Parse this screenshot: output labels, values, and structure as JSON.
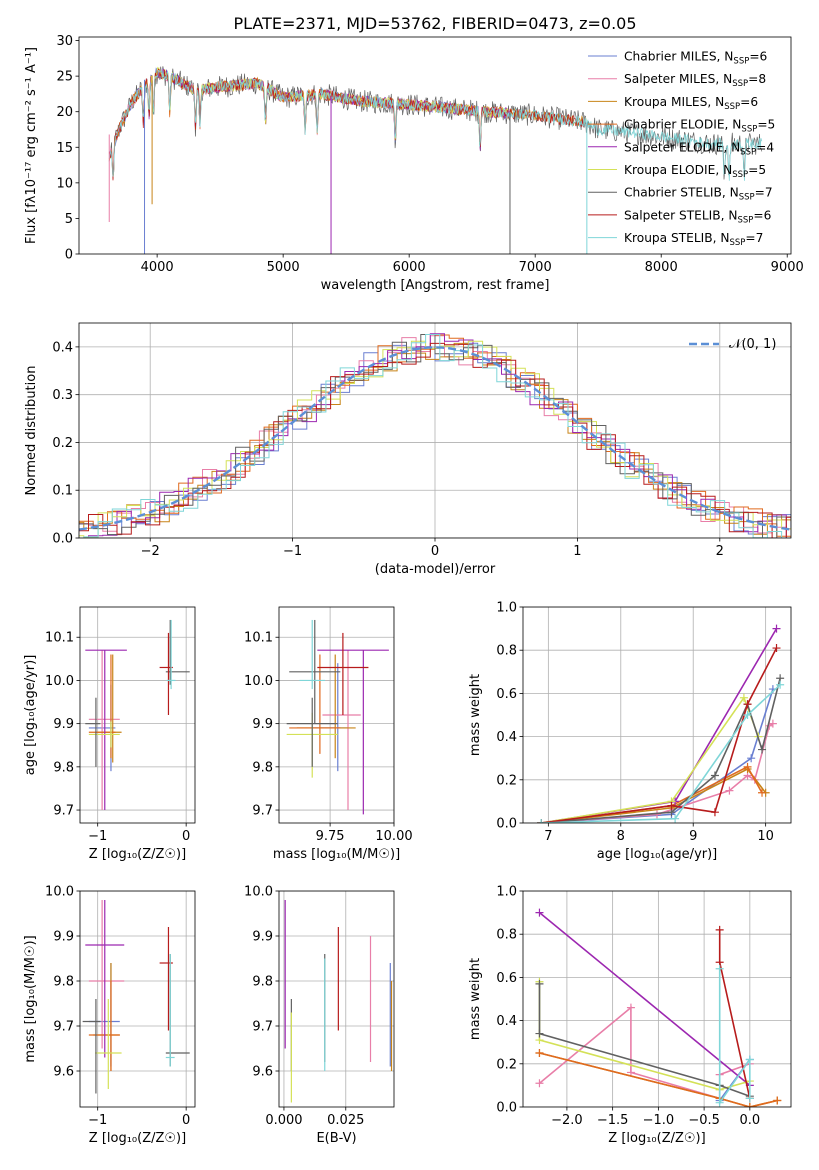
{
  "figure_title": "PLATE=2371, MJD=53762, FIBERID=0473, z=0.05",
  "colors": {
    "Chabrier MILES": "#6a7fd1",
    "Salpeter MILES": "#e87ea8",
    "Kroupa MILES": "#c88418",
    "Chabrier ELODIE": "#e06a1f",
    "Salpeter ELODIE": "#9c27b0",
    "Kroupa ELODIE": "#d4e157",
    "Chabrier STELIB": "#616161",
    "Salpeter STELIB": "#b71c1c",
    "Kroupa STELIB": "#7fd6d8",
    "normal_curve": "#5b8fd6"
  },
  "chart_data": [
    {
      "id": "spectrum",
      "type": "line",
      "title": "PLATE=2371, MJD=53762, FIBERID=0473, z=0.05",
      "xlabel": "wavelength [Angstrom, rest frame]",
      "ylabel": "Flux [fλ10⁻¹⁷ erg cm⁻² s⁻¹ A⁻¹]",
      "xlim": [
        3380,
        9030
      ],
      "ylim": [
        0,
        30.5
      ],
      "xticks": [
        4000,
        5000,
        6000,
        7000,
        8000,
        9000
      ],
      "yticks": [
        0,
        5,
        10,
        15,
        20,
        25,
        30
      ],
      "legend_position": "top-right",
      "legend": [
        {
          "model": "Chabrier MILES",
          "nssp": "6"
        },
        {
          "model": "Salpeter MILES",
          "nssp": "8"
        },
        {
          "model": "Kroupa MILES",
          "nssp": "6"
        },
        {
          "model": "Chabrier ELODIE",
          "nssp": "5"
        },
        {
          "model": "Salpeter ELODIE",
          "nssp": "4"
        },
        {
          "model": "Kroupa ELODIE",
          "nssp": "5"
        },
        {
          "model": "Chabrier STELIB",
          "nssp": "7"
        },
        {
          "model": "Salpeter STELIB",
          "nssp": "6"
        },
        {
          "model": "Kroupa STELIB",
          "nssp": "7"
        }
      ],
      "continuum": {
        "x": [
          3600,
          3700,
          3800,
          3900,
          4000,
          4100,
          4300,
          4500,
          4800,
          5000,
          5300,
          5600,
          6000,
          6300,
          6600,
          7000,
          7400,
          7500,
          7800,
          8000,
          8400,
          8800
        ],
        "y": [
          16,
          20,
          23,
          24.5,
          25.5,
          25,
          23,
          23.5,
          24,
          22,
          22.5,
          21.5,
          21,
          20.5,
          20,
          19.5,
          18.5,
          17.5,
          17,
          16.5,
          15.5,
          15.5
        ]
      },
      "absorption_lines": [
        3650,
        3890,
        3935,
        3970,
        4100,
        4305,
        4340,
        4860,
        5175,
        5270,
        5890,
        6563,
        8500,
        8540,
        8660
      ],
      "model_x_ranges": [
        [
          3620,
          6800
        ],
        [
          3620,
          6800
        ],
        [
          3620,
          7410
        ],
        [
          3620,
          6800
        ],
        [
          3900,
          6800
        ],
        [
          3900,
          6800
        ],
        [
          3620,
          8800
        ],
        [
          3620,
          7400
        ],
        [
          3620,
          8800
        ]
      ]
    },
    {
      "id": "residuals",
      "type": "bar",
      "xlabel": "(data-model)/error",
      "ylabel": "Normed distribution",
      "xlim": [
        -2.5,
        2.5
      ],
      "ylim": [
        0,
        0.45
      ],
      "xticks": [
        -2,
        -1,
        0,
        1,
        2
      ],
      "yticks": [
        0.0,
        0.1,
        0.2,
        0.3,
        0.4
      ],
      "legend_position": "top-right",
      "normal_label": "𝒩(0, 1)"
    },
    {
      "id": "age-vs-Z",
      "type": "scatter",
      "xlabel": "Z [log₁₀(Z/Z☉)]",
      "ylabel": "age  [log₁₀(age/yr)]",
      "xlim": [
        -1.2,
        0.1
      ],
      "ylim": [
        9.67,
        10.17
      ],
      "xticks": [
        -1,
        0
      ],
      "yticks": [
        9.7,
        9.8,
        9.9,
        10.0,
        10.1
      ],
      "points": [
        {
          "model": "Chabrier MILES",
          "x": -0.85,
          "y": 9.89,
          "xerr": [
            0.25,
            0.05
          ],
          "yerr": [
            0.1,
            0.1
          ]
        },
        {
          "model": "Salpeter MILES",
          "x": -0.95,
          "y": 9.91,
          "xerr": [
            0.15,
            0.2
          ],
          "yerr": [
            0.21,
            0.16
          ]
        },
        {
          "model": "Kroupa MILES",
          "x": -0.83,
          "y": 9.88,
          "xerr": [
            0.2,
            0.1
          ],
          "yerr": [
            0.07,
            0.18
          ]
        },
        {
          "model": "Chabrier ELODIE",
          "x": -0.85,
          "y": 9.88,
          "xerr": [
            0.25,
            0.05
          ],
          "yerr": [
            0.06,
            0.18
          ]
        },
        {
          "model": "Salpeter ELODIE",
          "x": -0.92,
          "y": 10.07,
          "xerr": [
            0.22,
            0.25
          ],
          "yerr": [
            0.37,
            0
          ]
        },
        {
          "model": "Kroupa ELODIE",
          "x": -0.85,
          "y": 9.875,
          "xerr": [
            0.25,
            0.1
          ],
          "yerr": [
            0.03,
            0.03
          ]
        },
        {
          "model": "Chabrier STELIB",
          "x": -0.18,
          "y": 10.02,
          "xerr": [
            0.05,
            0.22
          ],
          "yerr": [
            0.03,
            0.12
          ]
        },
        {
          "model": "Salpeter STELIB",
          "x": -0.2,
          "y": 10.03,
          "xerr": [
            0.1,
            0.05
          ],
          "yerr": [
            0.11,
            0.08
          ]
        },
        {
          "model": "Kroupa STELIB",
          "x": -0.17,
          "y": 10.0,
          "xerr": [
            0.05,
            0.05
          ],
          "yerr": [
            0.02,
            0.14
          ]
        },
        {
          "model": "Chabrier STELIB",
          "x": -1.02,
          "y": 9.9,
          "xerr": [
            0.12,
            0.05
          ],
          "yerr": [
            0.1,
            0.06
          ]
        }
      ]
    },
    {
      "id": "age-vs-mass",
      "type": "scatter",
      "xlabel": "mass [log₁₀(M/M☉)]",
      "ylabel": "",
      "xlim": [
        9.55,
        10.0
      ],
      "ylim": [
        9.67,
        10.17
      ],
      "xticks": [
        9.75,
        10.0
      ],
      "xticklabels": [
        "9.75",
        "10.00"
      ],
      "yticks": [
        9.7,
        9.8,
        9.9,
        10.0,
        10.1
      ],
      "points": [
        {
          "model": "Chabrier MILES",
          "x": 9.78,
          "y": 9.89,
          "xerr": [
            0.1,
            0.04
          ],
          "yerr": [
            0.1,
            0.15
          ]
        },
        {
          "model": "Salpeter MILES",
          "x": 9.82,
          "y": 9.92,
          "xerr": [
            0.1,
            0.05
          ],
          "yerr": [
            0.22,
            0.15
          ]
        },
        {
          "model": "Kroupa MILES",
          "x": 9.77,
          "y": 9.89,
          "xerr": [
            0.15,
            0.08
          ],
          "yerr": [
            0.07,
            0.17
          ]
        },
        {
          "model": "Chabrier ELODIE",
          "x": 9.71,
          "y": 9.89,
          "xerr": [
            0.12,
            0.08
          ],
          "yerr": [
            0.06,
            0.17
          ]
        },
        {
          "model": "Salpeter ELODIE",
          "x": 9.88,
          "y": 10.07,
          "xerr": [
            0.18,
            0.1
          ],
          "yerr": [
            0.38,
            0
          ]
        },
        {
          "model": "Kroupa ELODIE",
          "x": 9.68,
          "y": 9.875,
          "xerr": [
            0.1,
            0.1
          ],
          "yerr": [
            0.1,
            0.05
          ]
        },
        {
          "model": "Chabrier STELIB",
          "x": 9.69,
          "y": 10.02,
          "xerr": [
            0.1,
            0.1
          ],
          "yerr": [
            0.12,
            0.12
          ]
        },
        {
          "model": "Salpeter STELIB",
          "x": 9.8,
          "y": 10.03,
          "xerr": [
            0.1,
            0.1
          ],
          "yerr": [
            0.11,
            0.08
          ]
        },
        {
          "model": "Kroupa STELIB",
          "x": 9.68,
          "y": 10.0,
          "xerr": [
            0.05,
            0.05
          ],
          "yerr": [
            0.02,
            0.14
          ]
        },
        {
          "model": "Chabrier STELIB",
          "x": 9.68,
          "y": 9.9,
          "xerr": [
            0.1,
            0.1
          ],
          "yerr": [
            0.1,
            0.06
          ]
        }
      ]
    },
    {
      "id": "mass-weight-vs-age",
      "type": "line",
      "xlabel": "age  [log₁₀(age/yr)]",
      "ylabel": "mass weight",
      "xlim": [
        6.65,
        10.35
      ],
      "ylim": [
        0,
        1.0
      ],
      "xticks": [
        7,
        8,
        9,
        10
      ],
      "yticks": [
        0.0,
        0.2,
        0.4,
        0.6,
        0.8,
        1.0
      ],
      "series": [
        {
          "model": "Chabrier MILES",
          "x": [
            6.9,
            8.7,
            9.8,
            10.1
          ],
          "y": [
            0,
            0.04,
            0.3,
            0.62
          ]
        },
        {
          "model": "Salpeter MILES",
          "x": [
            6.9,
            8.5,
            9.5,
            9.75,
            9.85,
            10.05,
            10.1
          ],
          "y": [
            0,
            0.04,
            0.15,
            0.22,
            0.2,
            0.45,
            0.46
          ]
        },
        {
          "model": "Kroupa MILES",
          "x": [
            6.9,
            8.7,
            9.75,
            10.0
          ],
          "y": [
            0,
            0.07,
            0.25,
            0.14
          ]
        },
        {
          "model": "Chabrier ELODIE",
          "x": [
            6.9,
            8.7,
            9.75,
            9.95
          ],
          "y": [
            0,
            0.08,
            0.26,
            0.14
          ]
        },
        {
          "model": "Salpeter ELODIE",
          "x": [
            6.9,
            8.75,
            10.15
          ],
          "y": [
            0,
            0.1,
            0.9
          ]
        },
        {
          "model": "Kroupa ELODIE",
          "x": [
            6.9,
            8.7,
            9.7,
            9.9
          ],
          "y": [
            0,
            0.1,
            0.58,
            0.4
          ]
        },
        {
          "model": "Chabrier STELIB",
          "x": [
            6.9,
            8.7,
            9.3,
            9.75,
            9.95,
            10.2
          ],
          "y": [
            0,
            0.05,
            0.22,
            0.55,
            0.34,
            0.67
          ]
        },
        {
          "model": "Salpeter STELIB",
          "x": [
            6.9,
            8.7,
            9.3,
            9.75,
            10.15
          ],
          "y": [
            0,
            0.08,
            0.05,
            0.55,
            0.81
          ]
        },
        {
          "model": "Kroupa STELIB",
          "x": [
            6.9,
            8.75,
            9.75,
            10.2
          ],
          "y": [
            0,
            0.02,
            0.5,
            0.64
          ]
        }
      ]
    },
    {
      "id": "mass-vs-Z",
      "type": "scatter",
      "xlabel": "Z [log₁₀(Z/Z☉)]",
      "ylabel": "mass [log₁₀(M/M☉)]",
      "xlim": [
        -1.2,
        0.1
      ],
      "ylim": [
        9.52,
        10.0
      ],
      "xticks": [
        -1,
        0
      ],
      "yticks": [
        9.6,
        9.7,
        9.8,
        9.9,
        10.0
      ],
      "points": [
        {
          "model": "Chabrier MILES",
          "x": -0.85,
          "y": 9.71,
          "xerr": [
            0.25,
            0.1
          ],
          "yerr": [
            0.1,
            0.13
          ]
        },
        {
          "model": "Salpeter MILES",
          "x": -0.95,
          "y": 9.8,
          "xerr": [
            0.15,
            0.25
          ],
          "yerr": [
            0.15,
            0.18
          ]
        },
        {
          "model": "Kroupa MILES",
          "x": -0.85,
          "y": 9.68,
          "xerr": [
            0.2,
            0.1
          ],
          "yerr": [
            0.08,
            0.16
          ]
        },
        {
          "model": "Chabrier ELODIE",
          "x": -0.85,
          "y": 9.68,
          "xerr": [
            0.25,
            0.1
          ],
          "yerr": [
            0.08,
            0.12
          ]
        },
        {
          "model": "Salpeter ELODIE",
          "x": -0.92,
          "y": 9.88,
          "xerr": [
            0.22,
            0.22
          ],
          "yerr": [
            0.25,
            0.1
          ]
        },
        {
          "model": "Kroupa ELODIE",
          "x": -0.88,
          "y": 9.64,
          "xerr": [
            0.15,
            0.15
          ],
          "yerr": [
            0.08,
            0.12
          ]
        },
        {
          "model": "Chabrier STELIB",
          "x": -0.18,
          "y": 9.64,
          "xerr": [
            0.05,
            0.22
          ],
          "yerr": [
            0.03,
            0.22
          ]
        },
        {
          "model": "Salpeter STELIB",
          "x": -0.2,
          "y": 9.84,
          "xerr": [
            0.1,
            0.05
          ],
          "yerr": [
            0.15,
            0.08
          ]
        },
        {
          "model": "Kroupa STELIB",
          "x": -0.18,
          "y": 9.63,
          "xerr": [
            0.05,
            0.05
          ],
          "yerr": [
            0.02,
            0.23
          ]
        },
        {
          "model": "Chabrier STELIB",
          "x": -1.02,
          "y": 9.71,
          "xerr": [
            0.15,
            0.05
          ],
          "yerr": [
            0.16,
            0.05
          ]
        }
      ]
    },
    {
      "id": "mass-vs-ebv",
      "type": "scatter",
      "xlabel": "E(B-V)",
      "ylabel": "",
      "xlim": [
        -0.002,
        0.0445
      ],
      "ylim": [
        9.52,
        10.0
      ],
      "xticks": [
        0.0,
        0.025
      ],
      "xticklabels": [
        "0.000",
        "0.025"
      ],
      "yticks": [
        9.6,
        9.7,
        9.8,
        9.9,
        10.0
      ],
      "points": [
        {
          "model": "Salpeter ELODIE",
          "x": 0.0005,
          "y": 9.8,
          "yerr": [
            0.15,
            0.18
          ]
        },
        {
          "model": "Chabrier STELIB",
          "x": 0.003,
          "y": 9.7,
          "yerr": [
            0.1,
            0.06
          ]
        },
        {
          "model": "Kroupa ELODIE",
          "x": 0.003,
          "y": 9.64,
          "yerr": [
            0.11,
            0.09
          ]
        },
        {
          "model": "Chabrier STELIB",
          "x": 0.0165,
          "y": 9.8,
          "yerr": [
            0.18,
            0.06
          ]
        },
        {
          "model": "Kroupa STELIB",
          "x": 0.0165,
          "y": 9.72,
          "yerr": [
            0.12,
            0.13
          ]
        },
        {
          "model": "Salpeter STELIB",
          "x": 0.022,
          "y": 9.84,
          "yerr": [
            0.15,
            0.08
          ]
        },
        {
          "model": "Salpeter MILES",
          "x": 0.035,
          "y": 9.76,
          "yerr": [
            0.14,
            0.14
          ]
        },
        {
          "model": "Chabrier MILES",
          "x": 0.043,
          "y": 9.71,
          "yerr": [
            0.1,
            0.13
          ]
        },
        {
          "model": "Kroupa MILES",
          "x": 0.0435,
          "y": 9.7,
          "yerr": [
            0.1,
            0.1
          ]
        }
      ]
    },
    {
      "id": "mass-weight-vs-Z",
      "type": "line",
      "xlabel": "Z [log₁₀(Z/Z☉)]",
      "ylabel": "mass weight",
      "xlim": [
        -2.48,
        0.45
      ],
      "ylim": [
        0,
        1.0
      ],
      "xticks": [
        -2.0,
        -1.5,
        -1.0,
        -0.5,
        0.0
      ],
      "xticklabels": [
        "−2.0",
        "−1.5",
        "−1.0",
        "−0.5",
        "0.0"
      ],
      "yticks": [
        0.0,
        0.2,
        0.4,
        0.6,
        0.8,
        1.0
      ],
      "series": [
        {
          "model": "Chabrier MILES",
          "x": [
            -0.33,
            0.0
          ],
          "y": [
            0.03,
            0.22
          ]
        },
        {
          "model": "Salpeter MILES",
          "x": [
            -2.3,
            -1.3,
            -1.3,
            -0.33,
            -0.33,
            0.0
          ],
          "y": [
            0.11,
            0.46,
            0.16,
            0.04,
            0.15,
            0.2
          ]
        },
        {
          "model": "Kroupa MILES",
          "x": [
            -2.3,
            -0.33,
            0.0,
            0.3
          ],
          "y": [
            0.25,
            0.04,
            0.0,
            0.03
          ]
        },
        {
          "model": "Chabrier ELODIE",
          "x": [
            -2.3,
            -0.33,
            0.0,
            0.3
          ],
          "y": [
            0.25,
            0.04,
            0.0,
            0.03
          ]
        },
        {
          "model": "Salpeter ELODIE",
          "x": [
            -2.3,
            0.0
          ],
          "y": [
            0.9,
            0.1
          ]
        },
        {
          "model": "Kroupa ELODIE",
          "x": [
            -2.3,
            -2.3,
            -0.33,
            0.0
          ],
          "y": [
            0.58,
            0.31,
            0.08,
            0.12
          ]
        },
        {
          "model": "Chabrier STELIB",
          "x": [
            -2.3,
            -2.3,
            -0.33,
            0.0
          ],
          "y": [
            0.57,
            0.34,
            0.1,
            0.05
          ]
        },
        {
          "model": "Salpeter STELIB",
          "x": [
            -0.33,
            -0.33,
            0.0
          ],
          "y": [
            0.82,
            0.67,
            0.04
          ]
        },
        {
          "model": "Kroupa STELIB",
          "x": [
            -0.33,
            -0.33,
            0.0,
            0.0
          ],
          "y": [
            0.64,
            0.02,
            0.22,
            0.04
          ]
        }
      ]
    }
  ]
}
